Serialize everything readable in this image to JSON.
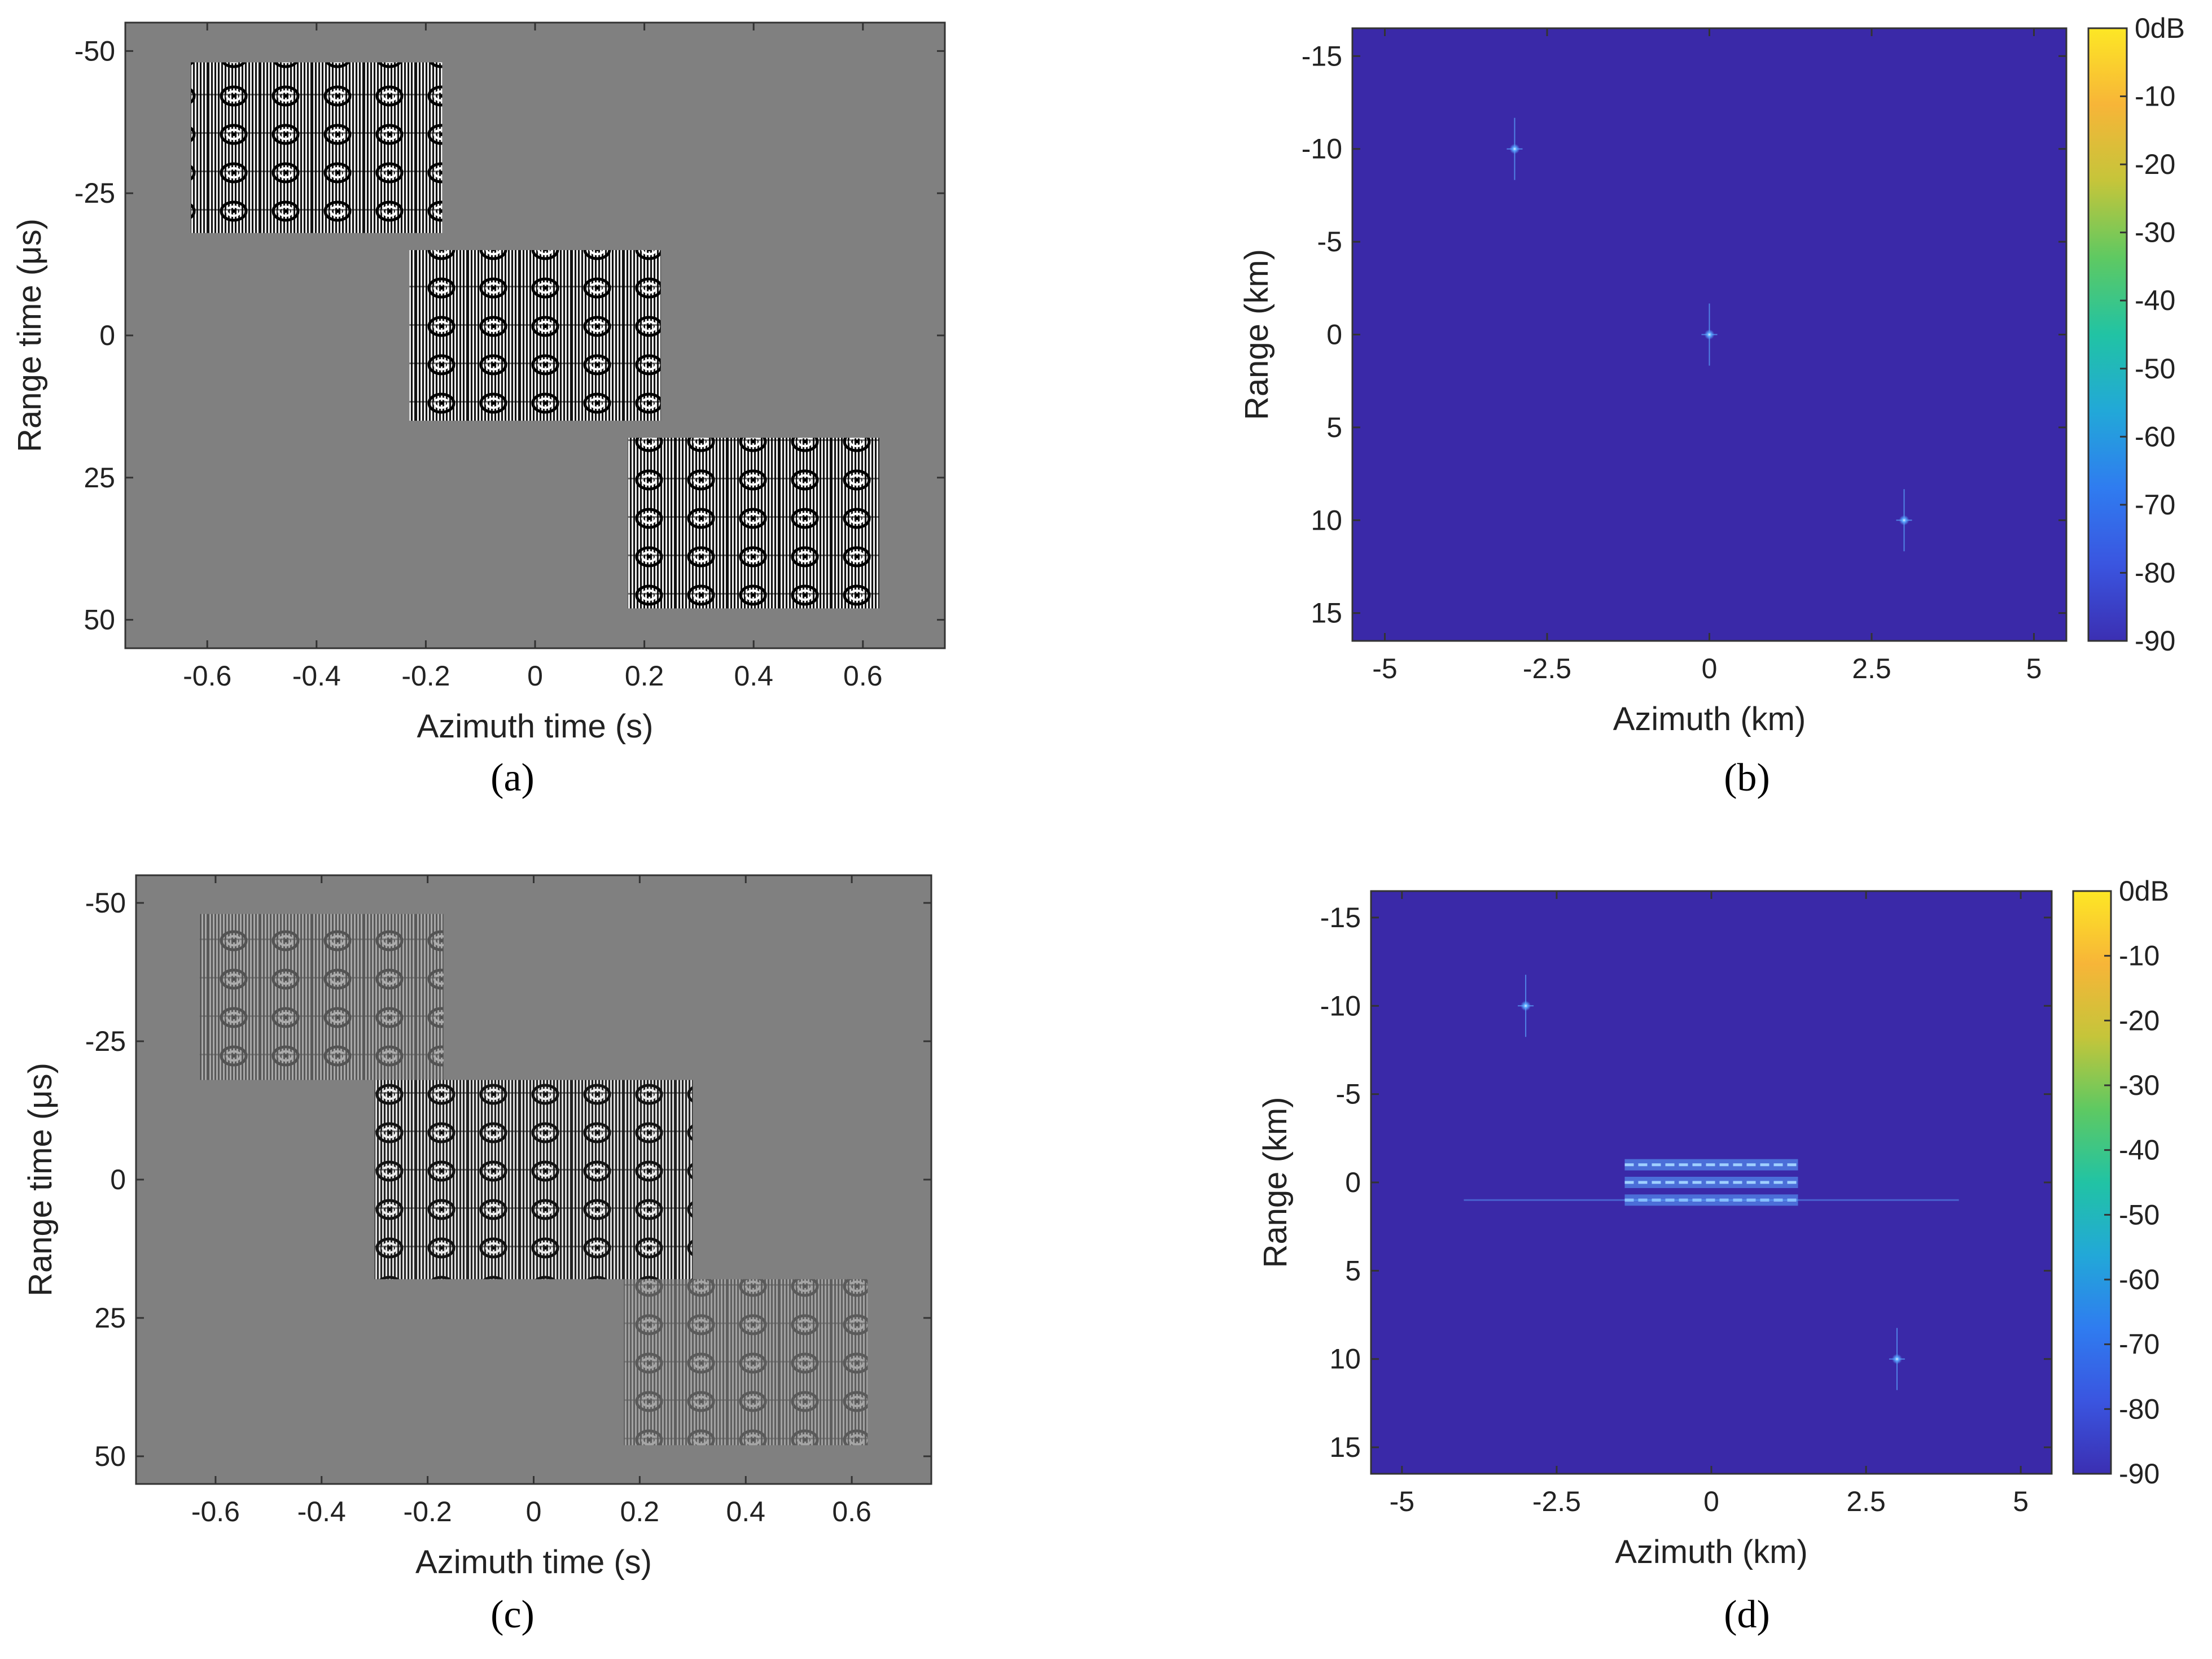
{
  "colors": {
    "raw_background": "#808080",
    "image_background": "#3a29a8",
    "target": "#5aa8ff",
    "colormap": [
      "#fde725",
      "#f7b538",
      "#c5c53a",
      "#5ec962",
      "#21c3a4",
      "#22a8d8",
      "#2f7cf0",
      "#3a55e0",
      "#3b2fb2"
    ]
  },
  "chart_data": [
    {
      "panel": "(a)",
      "type": "heatmap",
      "xlabel": "Azimuth time (s)",
      "ylabel": "Range time (μs)",
      "xlim": [
        -0.75,
        0.75
      ],
      "ylim": [
        -55,
        55
      ],
      "y_reversed": true,
      "xticks": [
        -0.6,
        -0.4,
        -0.2,
        0,
        0.2,
        0.4,
        0.6
      ],
      "yticks": [
        -50,
        -25,
        0,
        25,
        50
      ],
      "signal_blocks": [
        {
          "x": [
            -0.63,
            -0.17
          ],
          "y": [
            -48,
            -18
          ],
          "contrast": 1.0
        },
        {
          "x": [
            -0.23,
            0.23
          ],
          "y": [
            -15,
            15
          ],
          "contrast": 1.0
        },
        {
          "x": [
            0.17,
            0.63
          ],
          "y": [
            18,
            48
          ],
          "contrast": 1.0
        }
      ]
    },
    {
      "panel": "(b)",
      "type": "heatmap",
      "xlabel": "Azimuth (km)",
      "ylabel": "Range (km)",
      "xlim": [
        -5.5,
        5.5
      ],
      "ylim": [
        -16.5,
        16.5
      ],
      "y_reversed": true,
      "xticks": [
        -5,
        -2.5,
        0,
        2.5,
        5
      ],
      "yticks": [
        -15,
        -10,
        -5,
        0,
        5,
        10,
        15
      ],
      "colorbar": {
        "ticks": [
          0,
          -10,
          -20,
          -30,
          -40,
          -50,
          -60,
          -70,
          -80,
          -90
        ],
        "unit": "dB",
        "range": [
          -90,
          0
        ]
      },
      "point_targets": [
        {
          "azimuth": -3,
          "range": -10
        },
        {
          "azimuth": 0,
          "range": 0
        },
        {
          "azimuth": 3,
          "range": 10
        }
      ],
      "interference": []
    },
    {
      "panel": "(c)",
      "type": "heatmap",
      "xlabel": "Azimuth time (s)",
      "ylabel": "Range time (μs)",
      "xlim": [
        -0.75,
        0.75
      ],
      "ylim": [
        -55,
        55
      ],
      "y_reversed": true,
      "xticks": [
        -0.6,
        -0.4,
        -0.2,
        0,
        0.2,
        0.4,
        0.6
      ],
      "yticks": [
        -50,
        -25,
        0,
        25,
        50
      ],
      "signal_blocks": [
        {
          "x": [
            -0.63,
            -0.17
          ],
          "y": [
            -48,
            -18
          ],
          "contrast": 0.35
        },
        {
          "x": [
            -0.3,
            0.3
          ],
          "y": [
            -18,
            18
          ],
          "contrast": 0.85
        },
        {
          "x": [
            0.17,
            0.63
          ],
          "y": [
            18,
            48
          ],
          "contrast": 0.3
        }
      ]
    },
    {
      "panel": "(d)",
      "type": "heatmap",
      "xlabel": "Azimuth (km)",
      "ylabel": "Range (km)",
      "xlim": [
        -5.5,
        5.5
      ],
      "ylim": [
        -16.5,
        16.5
      ],
      "y_reversed": true,
      "xticks": [
        -5,
        -2.5,
        0,
        2.5,
        5
      ],
      "yticks": [
        -15,
        -10,
        -5,
        0,
        5,
        10,
        15
      ],
      "colorbar": {
        "ticks": [
          0,
          -10,
          -20,
          -30,
          -40,
          -50,
          -60,
          -70,
          -80,
          -90
        ],
        "unit": "dB",
        "range": [
          -90,
          0
        ]
      },
      "point_targets": [
        {
          "azimuth": -3,
          "range": -10
        },
        {
          "azimuth": 3,
          "range": 10
        }
      ],
      "interference": [
        {
          "azimuth": [
            -1.4,
            1.4
          ],
          "range": -1
        },
        {
          "azimuth": [
            -1.4,
            1.4
          ],
          "range": 0
        },
        {
          "azimuth": [
            -1.4,
            1.4
          ],
          "range": 1
        },
        {
          "azimuth": [
            -4,
            4
          ],
          "range": 1,
          "faint": true
        }
      ]
    }
  ]
}
